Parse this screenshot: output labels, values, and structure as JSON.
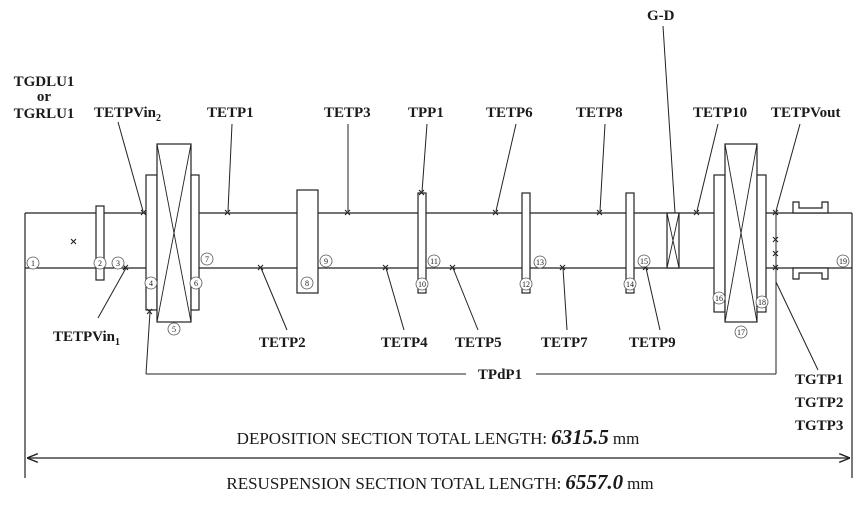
{
  "labels": {
    "tgdlu1": "TGDLU1",
    "or": "or",
    "tgrlu1": "TGRLU1",
    "tetpvin2_base": "TETPVin",
    "tetpvin2_sub": "2",
    "tetp1": "TETP1",
    "tetp3": "TETP3",
    "tpp1": "TPP1",
    "tetp6": "TETP6",
    "tetp8": "TETP8",
    "gd": "G-D",
    "tetp10": "TETP10",
    "tetpvout": "TETPVout",
    "tetpvin1_base": "TETPVin",
    "tetpvin1_sub": "1",
    "tetp2": "TETP2",
    "tetp4": "TETP4",
    "tetp5": "TETP5",
    "tetp7": "TETP7",
    "tetp9": "TETP9",
    "tpdp1": "TPdP1",
    "tgtp1": "TGTP1",
    "tgtp2": "TGTP2",
    "tgtp3": "TGTP3"
  },
  "section_numbers": [
    "1",
    "2",
    "3",
    "4",
    "5",
    "6",
    "7",
    "8",
    "9",
    "10",
    "11",
    "12",
    "13",
    "14",
    "15",
    "16",
    "17",
    "18",
    "19"
  ],
  "lengths": {
    "deposition_prefix": "DEPOSITION SECTION TOTAL LENGTH:",
    "deposition_value": "6315.5",
    "deposition_unit": "mm",
    "resuspension_prefix": "RESUSPENSION SECTION TOTAL LENGTH:",
    "resuspension_value": "6557.0",
    "resuspension_unit": "mm"
  }
}
